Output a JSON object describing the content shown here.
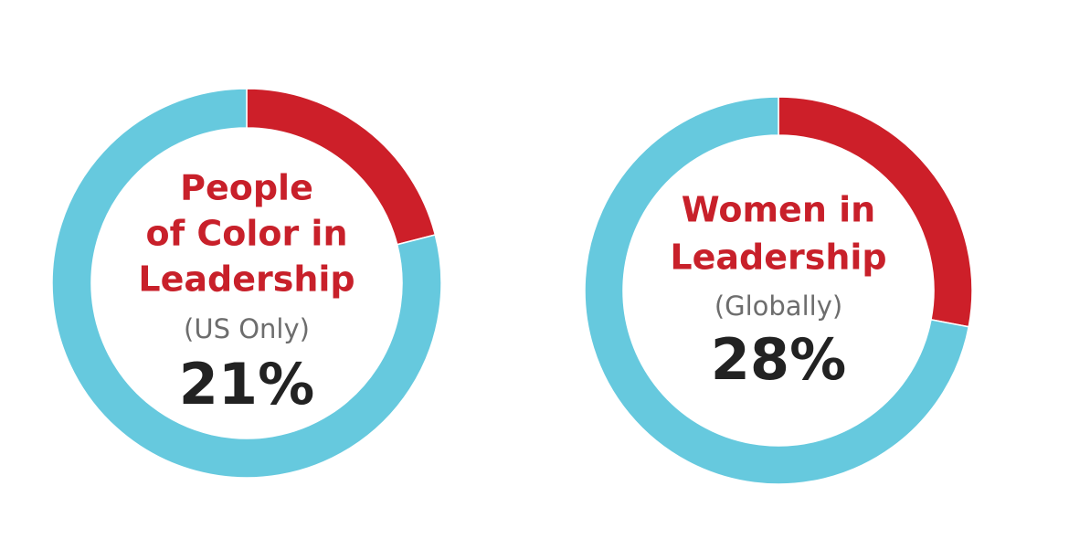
{
  "chart_data": [
    {
      "type": "donut",
      "title": [
        "People",
        "of Color in",
        "Leadership"
      ],
      "subtitle": "(US Only)",
      "values": [
        21,
        79
      ],
      "value_labels": [
        "21%",
        null
      ],
      "colors": [
        "#cd1f29",
        "#66c9de"
      ]
    },
    {
      "type": "donut",
      "title": [
        "Women in",
        "Leadership"
      ],
      "subtitle": "(Globally)",
      "values": [
        28,
        72
      ],
      "value_labels": [
        "28%",
        null
      ],
      "colors": [
        "#cd1f29",
        "#66c9de"
      ]
    }
  ]
}
